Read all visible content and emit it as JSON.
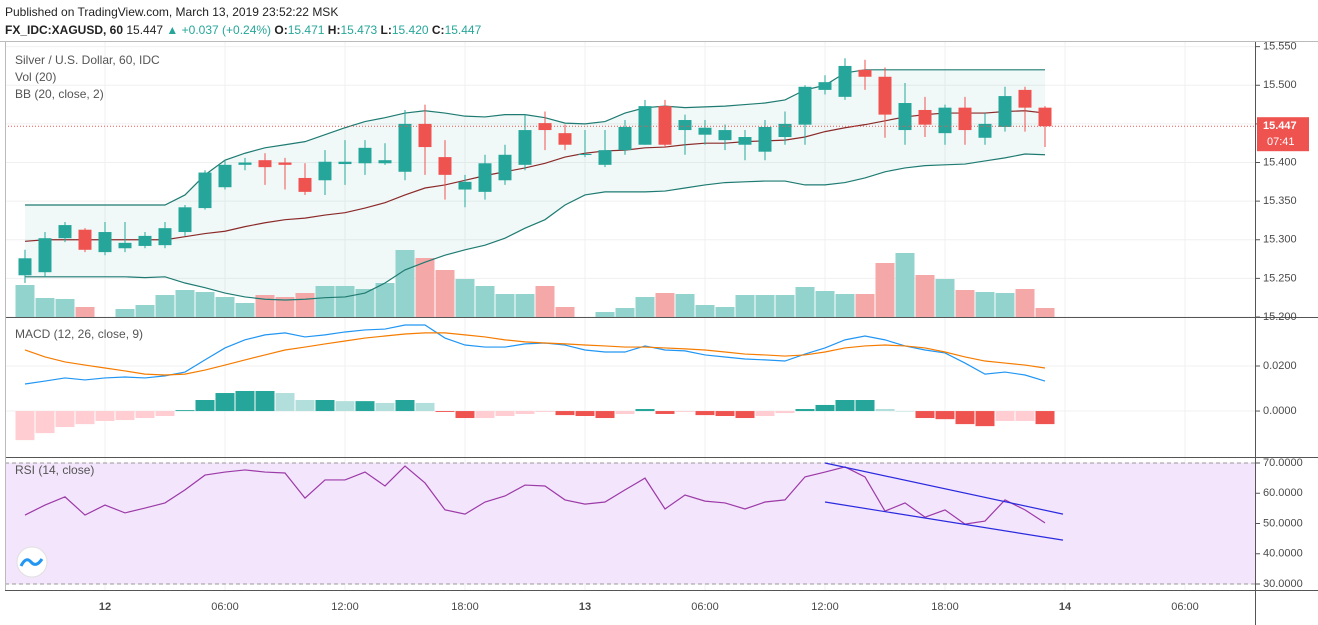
{
  "header": {
    "publisher": "Published on TradingView.com, March 13, 2019 23:52:22 MSK",
    "symbol": "FX_IDC:XAGUSD, 60",
    "last": "15.447",
    "arrow": "▲",
    "change": "+0.037 (+0.24%)",
    "ohlc": [
      {
        "key": "O:",
        "value": "15.471"
      },
      {
        "key": "H:",
        "value": "15.473"
      },
      {
        "key": "L:",
        "value": "15.420"
      },
      {
        "key": "C:",
        "value": "15.447"
      }
    ]
  },
  "chart_data": [
    {
      "type": "candlestick",
      "title": "Silver / U.S. Dollar, 60, IDC",
      "x": [
        -4,
        -3,
        -2,
        -1,
        0,
        1,
        2,
        3,
        4,
        5,
        6,
        7,
        8,
        9,
        10,
        11,
        12,
        13,
        14,
        15,
        16,
        17,
        18,
        19,
        20,
        21,
        22,
        23,
        24,
        25,
        26,
        27,
        28,
        29,
        30,
        31,
        32,
        33,
        34,
        35,
        36,
        37,
        38,
        39,
        40,
        41,
        42,
        43,
        44,
        45,
        46,
        47
      ],
      "xlim": [
        -5,
        57.5
      ],
      "xticks": [
        {
          "value": 0,
          "label": "12"
        },
        {
          "value": 6,
          "label": "06:00"
        },
        {
          "value": 12,
          "label": "12:00"
        },
        {
          "value": 18,
          "label": "18:00"
        },
        {
          "value": 24,
          "label": "13"
        },
        {
          "value": 30,
          "label": "06:00"
        },
        {
          "value": 36,
          "label": "12:00"
        },
        {
          "value": 42,
          "label": "18:00"
        },
        {
          "value": 48,
          "label": "14"
        },
        {
          "value": 54,
          "label": "06:00"
        }
      ],
      "ylim": [
        15.2,
        15.556
      ],
      "yticks": [
        {
          "value": 15.2,
          "label": "15.200"
        },
        {
          "value": 15.25,
          "label": "15.250"
        },
        {
          "value": 15.3,
          "label": "15.300"
        },
        {
          "value": 15.35,
          "label": "15.350"
        },
        {
          "value": 15.4,
          "label": "15.400"
        },
        {
          "value": 15.45,
          "label": "15.450"
        },
        {
          "value": 15.5,
          "label": "15.500"
        },
        {
          "value": 15.55,
          "label": "15.550"
        }
      ],
      "grid": true,
      "colors": {
        "up": "#26a69a",
        "down": "#ef5350"
      },
      "open": [
        15.254,
        15.258,
        15.302,
        15.313,
        15.284,
        15.289,
        15.292,
        15.293,
        15.31,
        15.341,
        15.368,
        15.397,
        15.403,
        15.4,
        15.38,
        15.377,
        15.398,
        15.399,
        15.399,
        15.388,
        15.45,
        15.407,
        15.365,
        15.362,
        15.377,
        15.397,
        15.451,
        15.438,
        15.41,
        15.397,
        15.416,
        15.423,
        15.473,
        15.442,
        15.436,
        15.429,
        15.423,
        15.414,
        15.433,
        15.449,
        15.494,
        15.485,
        15.52,
        15.511,
        15.442,
        15.468,
        15.438,
        15.471,
        15.432,
        15.446,
        15.494,
        15.471
      ],
      "high": [
        15.287,
        15.31,
        15.323,
        15.315,
        15.323,
        15.323,
        15.31,
        15.323,
        15.345,
        15.39,
        15.403,
        15.406,
        15.412,
        15.406,
        15.399,
        15.416,
        15.429,
        15.429,
        15.425,
        15.468,
        15.475,
        15.429,
        15.384,
        15.41,
        15.423,
        15.462,
        15.466,
        15.449,
        15.442,
        15.442,
        15.455,
        15.481,
        15.481,
        15.462,
        15.455,
        15.449,
        15.442,
        15.455,
        15.466,
        15.5,
        15.513,
        15.535,
        15.533,
        15.523,
        15.503,
        15.485,
        15.475,
        15.485,
        15.464,
        15.498,
        15.498,
        15.473
      ],
      "low": [
        15.244,
        15.252,
        15.297,
        15.284,
        15.28,
        15.284,
        15.289,
        15.289,
        15.305,
        15.339,
        15.365,
        15.39,
        15.371,
        15.365,
        15.358,
        15.358,
        15.371,
        15.384,
        15.397,
        15.377,
        15.384,
        15.352,
        15.342,
        15.352,
        15.371,
        15.39,
        15.416,
        15.416,
        15.407,
        15.394,
        15.41,
        15.423,
        15.419,
        15.41,
        15.423,
        15.416,
        15.403,
        15.403,
        15.423,
        15.423,
        15.488,
        15.481,
        15.494,
        15.432,
        15.423,
        15.433,
        15.423,
        15.423,
        15.423,
        15.44,
        15.44,
        15.42
      ],
      "close": [
        15.276,
        15.302,
        15.319,
        15.287,
        15.31,
        15.296,
        15.305,
        15.315,
        15.342,
        15.387,
        15.397,
        15.4,
        15.394,
        15.397,
        15.362,
        15.401,
        15.401,
        15.419,
        15.403,
        15.45,
        15.42,
        15.384,
        15.375,
        15.399,
        15.41,
        15.442,
        15.442,
        15.423,
        15.411,
        15.416,
        15.446,
        15.473,
        15.423,
        15.455,
        15.445,
        15.442,
        15.433,
        15.446,
        15.45,
        15.498,
        15.504,
        15.525,
        15.511,
        15.462,
        15.477,
        15.449,
        15.471,
        15.442,
        15.45,
        15.486,
        15.471,
        15.447
      ],
      "last_price": {
        "value": 15.447,
        "label": "15.447"
      },
      "countdown": "07:41"
    },
    {
      "type": "bar",
      "title": "Vol (20)",
      "ylim": [
        0,
        275
      ],
      "colors": {
        "up": "#93d3cd",
        "down": "#f5a8a8"
      },
      "values": [
        32,
        19,
        18,
        10,
        0,
        8,
        12,
        22,
        27,
        25,
        20,
        14,
        22,
        20,
        24,
        31,
        31,
        28,
        34,
        67,
        59,
        47,
        38,
        31,
        23,
        23,
        31,
        10,
        0,
        5,
        9,
        20,
        24,
        23,
        12,
        10,
        22,
        22,
        22,
        30,
        26,
        23,
        23,
        54,
        64,
        42,
        38,
        27,
        25,
        24,
        28,
        9
      ]
    },
    {
      "type": "line",
      "title": "BB (20, close, 2)",
      "fill": "rgba(38,166,154,0.07)",
      "series": [
        {
          "color": "#1f7b72",
          "values": [
            15.345,
            15.345,
            15.345,
            15.345,
            15.345,
            15.345,
            15.345,
            15.345,
            15.358,
            15.384,
            15.403,
            15.412,
            15.419,
            15.423,
            15.427,
            15.436,
            15.445,
            15.453,
            15.458,
            15.464,
            15.467,
            15.464,
            15.46,
            15.459,
            15.462,
            15.462,
            15.458,
            15.451,
            15.45,
            15.453,
            15.464,
            15.471,
            15.473,
            15.471,
            15.472,
            15.473,
            15.475,
            15.477,
            15.481,
            15.494,
            15.5,
            15.516,
            15.52,
            15.52,
            15.52,
            15.52,
            15.52,
            15.52,
            15.52,
            15.52,
            15.52,
            15.52
          ]
        },
        {
          "color": "#8c2a2a",
          "values": [
            15.298,
            15.3,
            15.3,
            15.3,
            15.3,
            15.3,
            15.3,
            15.3,
            15.304,
            15.308,
            15.311,
            15.317,
            15.322,
            15.326,
            15.328,
            15.332,
            15.335,
            15.341,
            15.348,
            15.358,
            15.367,
            15.371,
            15.377,
            15.383,
            15.388,
            15.393,
            15.399,
            15.407,
            15.412,
            15.415,
            15.416,
            15.419,
            15.42,
            15.423,
            15.425,
            15.425,
            15.427,
            15.428,
            15.429,
            15.433,
            15.44,
            15.445,
            15.449,
            15.454,
            15.459,
            15.462,
            15.464,
            15.464,
            15.464,
            15.466,
            15.467,
            15.464
          ]
        },
        {
          "color": "#1f7b72",
          "values": [
            15.252,
            15.252,
            15.252,
            15.252,
            15.252,
            15.252,
            15.251,
            15.252,
            15.244,
            15.238,
            15.231,
            15.226,
            15.223,
            15.222,
            15.223,
            15.225,
            15.226,
            15.231,
            15.244,
            15.261,
            15.271,
            15.28,
            15.287,
            15.293,
            15.302,
            15.315,
            15.326,
            15.345,
            15.358,
            15.362,
            15.362,
            15.362,
            15.363,
            15.367,
            15.371,
            15.374,
            15.375,
            15.376,
            15.376,
            15.371,
            15.371,
            15.374,
            15.38,
            15.388,
            15.393,
            15.396,
            15.397,
            15.398,
            15.402,
            15.406,
            15.411,
            15.41
          ]
        }
      ]
    },
    {
      "type": "line",
      "title": "MACD (12, 26, close, 9)",
      "ylim": [
        -0.0204,
        0.0413
      ],
      "yticks": [
        {
          "value": 0,
          "label": "0.0000"
        },
        {
          "value": 0.02,
          "label": "0.0200"
        }
      ],
      "grid": true,
      "histogram": {
        "colors": {
          "up_rising": "#26a69a",
          "up_falling": "#b2dfdb",
          "down_falling": "#ef5350",
          "down_rising": "#ffcdd2"
        },
        "values": [
          -0.0129,
          -0.0098,
          -0.0071,
          -0.0058,
          -0.0044,
          -0.004,
          -0.0031,
          -0.0022,
          0.0004,
          0.0049,
          0.008,
          0.0089,
          0.0089,
          0.008,
          0.0049,
          0.0049,
          0.0044,
          0.0044,
          0.0036,
          0.0049,
          0.0036,
          -0.0004,
          -0.0031,
          -0.0031,
          -0.0022,
          -0.0013,
          -0.0004,
          -0.0018,
          -0.0022,
          -0.0031,
          -0.0013,
          0.0009,
          -0.0013,
          -0.0004,
          -0.0018,
          -0.0022,
          -0.0031,
          -0.0022,
          -0.0009,
          0.0009,
          0.0027,
          0.0049,
          0.0049,
          0.0009,
          0,
          -0.0031,
          -0.0036,
          -0.0058,
          -0.0067,
          -0.0044,
          -0.0044,
          -0.0058
        ]
      },
      "series": [
        {
          "color": "#2196f3",
          "values": [
            0.012,
            0.0133,
            0.0147,
            0.0138,
            0.0147,
            0.0151,
            0.0147,
            0.0156,
            0.0173,
            0.0227,
            0.028,
            0.0316,
            0.0338,
            0.0347,
            0.0329,
            0.0338,
            0.0351,
            0.036,
            0.0364,
            0.0382,
            0.0382,
            0.0324,
            0.0293,
            0.0284,
            0.0284,
            0.0298,
            0.0302,
            0.0293,
            0.0271,
            0.0262,
            0.0262,
            0.0289,
            0.0271,
            0.0267,
            0.0249,
            0.024,
            0.0231,
            0.0227,
            0.0222,
            0.0253,
            0.028,
            0.0316,
            0.0333,
            0.0316,
            0.0289,
            0.0271,
            0.0258,
            0.0213,
            0.0164,
            0.0173,
            0.016,
            0.0133
          ]
        },
        {
          "color": "#f57c00",
          "values": [
            0.0271,
            0.024,
            0.0218,
            0.0204,
            0.0191,
            0.0178,
            0.0164,
            0.016,
            0.0164,
            0.0182,
            0.0204,
            0.0227,
            0.0249,
            0.0271,
            0.0284,
            0.0298,
            0.0311,
            0.0324,
            0.0333,
            0.0342,
            0.0347,
            0.0347,
            0.0338,
            0.0329,
            0.0316,
            0.0307,
            0.0302,
            0.0298,
            0.0293,
            0.0289,
            0.0284,
            0.0284,
            0.028,
            0.0276,
            0.0271,
            0.0262,
            0.0253,
            0.0249,
            0.0244,
            0.0249,
            0.0262,
            0.028,
            0.0289,
            0.0293,
            0.0289,
            0.028,
            0.0262,
            0.024,
            0.0222,
            0.0213,
            0.0204,
            0.0191
          ]
        }
      ]
    },
    {
      "type": "line",
      "title": "RSI (14, close)",
      "ylim": [
        28.02,
        71.65
      ],
      "yticks": [
        {
          "value": 30,
          "label": "30.0000"
        },
        {
          "value": 40,
          "label": "40.0000"
        },
        {
          "value": 50,
          "label": "50.0000"
        },
        {
          "value": 60,
          "label": "60.0000"
        },
        {
          "value": 70,
          "label": "70.0000"
        }
      ],
      "grid": true,
      "band": [
        30,
        70
      ],
      "band_color": "#f3e5fb",
      "series": [
        {
          "color": "#9c3aa8",
          "values": [
            52.8,
            56.1,
            58.8,
            52.8,
            56.1,
            53.5,
            55.1,
            56.8,
            61.1,
            66.0,
            67.0,
            67.7,
            67.0,
            66.7,
            58.4,
            64.4,
            64.4,
            67.0,
            62.4,
            69.0,
            63.4,
            54.5,
            53.1,
            57.1,
            59.1,
            62.7,
            62.4,
            57.8,
            56.4,
            57.1,
            61.1,
            65.0,
            54.8,
            59.4,
            57.4,
            56.8,
            54.8,
            57.1,
            57.8,
            65.4,
            67.0,
            68.7,
            65.4,
            54.1,
            56.8,
            52.1,
            54.5,
            49.8,
            50.8,
            57.8,
            54.5,
            50.2
          ]
        }
      ],
      "trendlines": [
        {
          "color": "#2a2ae0",
          "x": [
            36,
            47.9
          ],
          "values": [
            70,
            53.1
          ]
        },
        {
          "color": "#2a2ae0",
          "x": [
            36,
            47.9
          ],
          "values": [
            57.1,
            44.5
          ]
        }
      ]
    }
  ]
}
